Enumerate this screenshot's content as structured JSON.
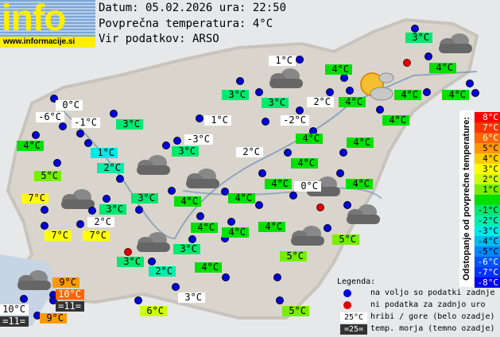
{
  "header": {
    "logo_text": "info",
    "logo_url": "www.informacije.si",
    "date_line": "Datum: 05.02.2026 ura: 22:50",
    "avg_line": "Povprečna temperatura: 4°C",
    "source_line": "Vir podatkov: ARSO"
  },
  "average_temperature": 4,
  "stations": [
    {
      "t": 3,
      "k": "v"
    },
    {
      "t": 1,
      "k": "m"
    },
    {
      "t": 4,
      "k": "v"
    },
    {
      "t": 4,
      "k": "v"
    },
    {
      "t": 0,
      "k": "m"
    },
    {
      "t": 3,
      "k": "v"
    },
    {
      "t": 3,
      "k": "v"
    },
    {
      "t": 2,
      "k": "m"
    },
    {
      "t": 4,
      "k": "v"
    },
    {
      "t": 4,
      "k": "v"
    },
    {
      "t": 4,
      "k": "v"
    },
    {
      "t": -6,
      "k": "m"
    },
    {
      "t": -1,
      "k": "m"
    },
    {
      "t": 3,
      "k": "v"
    },
    {
      "t": 1,
      "k": "m"
    },
    {
      "t": -2,
      "k": "m"
    },
    {
      "t": 4,
      "k": "v"
    },
    {
      "t": 4,
      "k": "v"
    },
    {
      "t": -3,
      "k": "m"
    },
    {
      "t": 4,
      "k": "v"
    },
    {
      "t": 1,
      "k": "v"
    },
    {
      "t": 3,
      "k": "v"
    },
    {
      "t": 2,
      "k": "m"
    },
    {
      "t": 4,
      "k": "v"
    },
    {
      "t": 2,
      "k": "v"
    },
    {
      "t": 5,
      "k": "v"
    },
    {
      "t": 4,
      "k": "v"
    },
    {
      "t": 4,
      "k": "v"
    },
    {
      "t": 0,
      "k": "m"
    },
    {
      "t": 4,
      "k": "v"
    },
    {
      "t": 7,
      "k": "v"
    },
    {
      "t": 3,
      "k": "v"
    },
    {
      "t": 4,
      "k": "v"
    },
    {
      "t": 4,
      "k": "v"
    },
    {
      "t": 3,
      "k": "v"
    },
    {
      "t": 2,
      "k": "m"
    },
    {
      "t": 4,
      "k": "v"
    },
    {
      "t": 4,
      "k": "v"
    },
    {
      "t": 4,
      "k": "v"
    },
    {
      "t": 7,
      "k": "v"
    },
    {
      "t": 7,
      "k": "v"
    },
    {
      "t": 5,
      "k": "v"
    },
    {
      "t": 3,
      "k": "v"
    },
    {
      "t": 5,
      "k": "v"
    },
    {
      "t": 3,
      "k": "v"
    },
    {
      "t": 2,
      "k": "v"
    },
    {
      "t": 4,
      "k": "v"
    },
    {
      "t": 9,
      "k": "v"
    },
    {
      "t": 10,
      "k": "v"
    },
    {
      "t": 11,
      "k": "s"
    },
    {
      "t": 3,
      "k": "m"
    },
    {
      "t": 10,
      "k": "m"
    },
    {
      "t": 11,
      "k": "s"
    },
    {
      "t": 9,
      "k": "v"
    },
    {
      "t": 6,
      "k": "v"
    },
    {
      "t": 5,
      "k": "v"
    }
  ],
  "dot_status": [
    "ok",
    "ok",
    "missing",
    "ok",
    "ok",
    "ok",
    "ok",
    "ok",
    "ok",
    "ok",
    "ok",
    "ok",
    "ok",
    "ok",
    "ok",
    "ok",
    "ok",
    "ok",
    "ok",
    "ok",
    "ok",
    "ok",
    "ok",
    "ok",
    "ok",
    "ok",
    "ok",
    "ok",
    "ok",
    "ok",
    "ok",
    "ok",
    "ok",
    "ok",
    "ok",
    "missing",
    "ok",
    "ok",
    "ok",
    "ok",
    "ok",
    "ok",
    "ok",
    "ok",
    "missing",
    "ok",
    "ok",
    "ok",
    "ok",
    "ok",
    "ok",
    "ok",
    "ok",
    "ok",
    "ok",
    "ok",
    "ok",
    "ok",
    "ok"
  ],
  "weather_icons": [
    "cloudy",
    "cloudy",
    "cloudy",
    "cloudy",
    "cloudy",
    "cloudy",
    "cloudy",
    "cloudy",
    "cloudy",
    "cloudy",
    "partly-cloudy"
  ],
  "scale": {
    "title": "Odstopanje od povprečne temperature:",
    "steps": [
      {
        "label": "8°C",
        "color": "#ff0000",
        "fg": "#fff"
      },
      {
        "label": "7°C",
        "color": "#ff3300",
        "fg": "#fff"
      },
      {
        "label": "6°C",
        "color": "#ff6600",
        "fg": "#fff"
      },
      {
        "label": "5°C",
        "color": "#ff9900",
        "fg": "#000"
      },
      {
        "label": "4°C",
        "color": "#ffcc00",
        "fg": "#000"
      },
      {
        "label": "3°C",
        "color": "#ffff00",
        "fg": "#000"
      },
      {
        "label": "2°C",
        "color": "#ccff00",
        "fg": "#000"
      },
      {
        "label": "1°C",
        "color": "#77ee00",
        "fg": "#000"
      },
      {
        "label": "",
        "color": "#00e000",
        "fg": "#000"
      },
      {
        "label": "-1°C",
        "color": "#00e870",
        "fg": "#000"
      },
      {
        "label": "-2°C",
        "color": "#00eeaa",
        "fg": "#000"
      },
      {
        "label": "-3°C",
        "color": "#00e8e8",
        "fg": "#000"
      },
      {
        "label": "-4°C",
        "color": "#00bbee",
        "fg": "#000"
      },
      {
        "label": "-5°C",
        "color": "#0088ff",
        "fg": "#000"
      },
      {
        "label": "-6°C",
        "color": "#0055ff",
        "fg": "#fff"
      },
      {
        "label": "-7°C",
        "color": "#0033ff",
        "fg": "#fff"
      },
      {
        "label": "-8°C",
        "color": "#0000ee",
        "fg": "#fff"
      }
    ]
  },
  "legend": {
    "title": "Legenda:",
    "available": "na voljo so podatki zadnje ure",
    "missing": "ni podatka za zadnjo uro",
    "mountain_sample": "25°C",
    "mountain": "hribi / gore (belo ozadje)",
    "sea_sample": "=25=",
    "sea": "temp. morja (temno ozadje)",
    "dot_available_color": "#0000dd",
    "dot_missing_color": "#dd0000"
  }
}
